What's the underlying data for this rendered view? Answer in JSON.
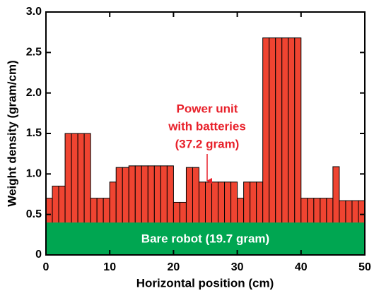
{
  "chart_data": {
    "type": "histogram",
    "xlabel": "Horizontal position (cm)",
    "ylabel": "Weight density (gram/cm)",
    "bins": [
      0,
      1,
      2,
      3,
      4,
      5,
      6,
      7,
      8,
      9,
      10,
      11,
      12,
      13,
      14,
      15,
      16,
      17,
      18,
      19,
      20,
      21,
      22,
      23,
      24,
      25,
      26,
      27,
      28,
      29,
      30,
      31,
      32,
      33,
      34,
      35,
      36,
      37,
      38,
      39,
      40,
      41,
      42,
      43,
      44,
      45,
      46,
      47,
      48,
      49,
      50
    ],
    "values": [
      0.7,
      0.85,
      0.85,
      1.5,
      1.5,
      1.5,
      1.5,
      0.7,
      0.7,
      0.7,
      0.9,
      1.08,
      1.08,
      1.1,
      1.1,
      1.1,
      1.1,
      1.1,
      1.1,
      1.1,
      0.65,
      0.65,
      1.08,
      1.08,
      0.9,
      0.9,
      0.9,
      0.9,
      0.9,
      0.9,
      0.7,
      0.9,
      0.9,
      0.9,
      2.68,
      2.68,
      2.68,
      2.68,
      2.68,
      2.68,
      0.7,
      0.7,
      0.7,
      0.7,
      0.7,
      1.09,
      0.67,
      0.67,
      0.67,
      0.67
    ],
    "color": "#ef4431",
    "base": {
      "label": "Bare robot (19.7 gram)",
      "value": 0.4,
      "color": "#00a651"
    },
    "annotation": [
      "Power unit",
      "with batteries",
      "(37.2 gram)"
    ],
    "xlim": [
      0,
      50
    ],
    "xticks": [
      0,
      10,
      20,
      30,
      40,
      50
    ],
    "ylim": [
      0,
      3.0
    ],
    "yticks": [
      0,
      0.5,
      {
        "value": 1.0,
        "label": "1.0"
      },
      1.5,
      {
        "value": 2.0,
        "label": "2.0"
      },
      2.5,
      {
        "value": 3.0,
        "label": "3.0"
      }
    ]
  }
}
